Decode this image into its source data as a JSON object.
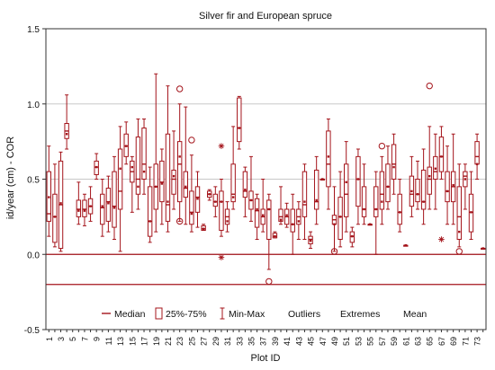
{
  "chart_data": {
    "type": "box",
    "title": "Silver fir and European spruce",
    "xlabel": "Plot ID",
    "ylabel": "id/year (cm) - COR",
    "ylim": [
      -0.5,
      1.5
    ],
    "yticks": [
      -0.5,
      0.0,
      0.5,
      1.0,
      1.5
    ],
    "ytick_labels": [
      "-0.5",
      "0.0",
      "0.5",
      "1.0",
      "1.5"
    ],
    "x_range": [
      1,
      74
    ],
    "xtick_labels": [
      "1",
      "3",
      "5",
      "7",
      "9",
      "11",
      "13",
      "15",
      "17",
      "19",
      "21",
      "23",
      "25",
      "27",
      "29",
      "31",
      "33",
      "35",
      "37",
      "39",
      "41",
      "43",
      "45",
      "47",
      "49",
      "51",
      "53",
      "55",
      "57",
      "59",
      "61",
      "63",
      "65",
      "67",
      "69",
      "71",
      "73"
    ],
    "reference_lines": [
      0.0,
      -0.2
    ],
    "grid": true,
    "legend_position": "bottom-center",
    "legend": [
      "Median",
      "25%-75%",
      "Min-Max",
      "Outliers",
      "Extremes",
      "Mean"
    ],
    "colors": {
      "series": "#a4141b",
      "grid": "#c8c8c8",
      "axis": "#333333"
    },
    "boxes": [
      {
        "plot": 1,
        "min": 0.12,
        "q1": 0.22,
        "median": 0.27,
        "q3": 0.55,
        "max": 0.72,
        "mean": 0.38
      },
      {
        "plot": 2,
        "min": 0.05,
        "q1": 0.08,
        "median": 0.25,
        "q3": 0.4,
        "max": 0.6,
        "mean": 0.25
      },
      {
        "plot": 3,
        "min": 0.02,
        "q1": 0.04,
        "median": 0.33,
        "q3": 0.62,
        "max": 0.68,
        "mean": 0.34
      },
      {
        "plot": 4,
        "min": 0.7,
        "q1": 0.77,
        "median": 0.82,
        "q3": 0.87,
        "max": 1.06,
        "mean": 0.8
      },
      {
        "plot": 6,
        "min": 0.2,
        "q1": 0.25,
        "median": 0.3,
        "q3": 0.36,
        "max": 0.48,
        "mean": 0.29
      },
      {
        "plot": 7,
        "min": 0.19,
        "q1": 0.25,
        "median": 0.3,
        "q3": 0.36,
        "max": 0.4,
        "mean": 0.29
      },
      {
        "plot": 8,
        "min": 0.22,
        "q1": 0.27,
        "median": 0.32,
        "q3": 0.37,
        "max": 0.45,
        "mean": 0.32
      },
      {
        "plot": 9,
        "min": 0.5,
        "q1": 0.53,
        "median": 0.58,
        "q3": 0.62,
        "max": 0.67,
        "mean": 0.58
      },
      {
        "plot": 10,
        "min": 0.12,
        "q1": 0.2,
        "median": 0.31,
        "q3": 0.4,
        "max": 0.5,
        "mean": 0.32
      },
      {
        "plot": 11,
        "min": 0.15,
        "q1": 0.22,
        "median": 0.35,
        "q3": 0.44,
        "max": 0.52,
        "mean": 0.34
      },
      {
        "plot": 12,
        "min": 0.1,
        "q1": 0.18,
        "median": 0.32,
        "q3": 0.55,
        "max": 0.65,
        "mean": 0.31
      },
      {
        "plot": 13,
        "min": 0.02,
        "q1": 0.3,
        "median": 0.42,
        "q3": 0.7,
        "max": 0.85,
        "mean": 0.57
      },
      {
        "plot": 14,
        "min": 0.6,
        "q1": 0.65,
        "median": 0.72,
        "q3": 0.8,
        "max": 0.88,
        "mean": 0.72
      },
      {
        "plot": 15,
        "min": 0.28,
        "q1": 0.48,
        "median": 0.55,
        "q3": 0.62,
        "max": 0.65,
        "mean": 0.58
      },
      {
        "plot": 16,
        "min": 0.3,
        "q1": 0.4,
        "median": 0.5,
        "q3": 0.78,
        "max": 0.9,
        "mean": 0.45
      },
      {
        "plot": 17,
        "min": 0.4,
        "q1": 0.5,
        "median": 0.6,
        "q3": 0.84,
        "max": 0.9,
        "mean": 0.55
      },
      {
        "plot": 18,
        "min": 0.08,
        "q1": 0.12,
        "median": 0.22,
        "q3": 0.45,
        "max": 0.58,
        "mean": 0.22
      },
      {
        "plot": 19,
        "min": 0.15,
        "q1": 0.3,
        "median": 0.45,
        "q3": 0.6,
        "max": 1.2,
        "mean": 0.45
      },
      {
        "plot": 20,
        "min": 0.2,
        "q1": 0.35,
        "median": 0.48,
        "q3": 0.62,
        "max": 0.7,
        "mean": 0.47
      },
      {
        "plot": 21,
        "min": 0.15,
        "q1": 0.22,
        "median": 0.33,
        "q3": 0.8,
        "max": 1.12,
        "mean": 0.35
      },
      {
        "plot": 22,
        "min": 0.3,
        "q1": 0.4,
        "median": 0.5,
        "q3": 0.56,
        "max": 0.82,
        "mean": 0.52
      },
      {
        "plot": 23,
        "min": 0.22,
        "q1": 0.35,
        "median": 0.6,
        "q3": 0.75,
        "max": 1.0,
        "mean": 0.65,
        "outliers": [
          1.1,
          0.22
        ]
      },
      {
        "plot": 24,
        "min": 0.2,
        "q1": 0.38,
        "median": 0.44,
        "q3": 0.55,
        "max": 0.98,
        "mean": 0.45
      },
      {
        "plot": 25,
        "min": 0.15,
        "q1": 0.2,
        "median": 0.28,
        "q3": 0.42,
        "max": 0.66,
        "mean": 0.27,
        "outliers": [
          0.76
        ]
      },
      {
        "plot": 26,
        "min": 0.18,
        "q1": 0.28,
        "median": 0.38,
        "q3": 0.45,
        "max": 0.55,
        "mean": 0.37
      },
      {
        "plot": 27,
        "min": 0.16,
        "q1": 0.16,
        "median": 0.17,
        "q3": 0.19,
        "max": 0.2,
        "mean": 0.17
      },
      {
        "plot": 28,
        "min": 0.36,
        "q1": 0.38,
        "median": 0.4,
        "q3": 0.42,
        "max": 0.43,
        "mean": 0.4
      },
      {
        "plot": 29,
        "min": 0.25,
        "q1": 0.32,
        "median": 0.35,
        "q3": 0.4,
        "max": 0.45,
        "mean": 0.35
      },
      {
        "plot": 30,
        "min": 0.12,
        "q1": 0.16,
        "median": 0.35,
        "q3": 0.42,
        "max": 0.5,
        "mean": 0.35,
        "extremes": [
          0.72,
          -0.02
        ]
      },
      {
        "plot": 31,
        "min": 0.15,
        "q1": 0.2,
        "median": 0.25,
        "q3": 0.3,
        "max": 0.35,
        "mean": 0.22
      },
      {
        "plot": 32,
        "min": 0.3,
        "q1": 0.35,
        "median": 0.4,
        "q3": 0.6,
        "max": 0.85,
        "mean": 0.38
      },
      {
        "plot": 33,
        "min": 0.7,
        "q1": 0.75,
        "median": 0.84,
        "q3": 1.04,
        "max": 1.05,
        "mean": 0.84
      },
      {
        "plot": 34,
        "min": 0.25,
        "q1": 0.38,
        "median": 0.42,
        "q3": 0.55,
        "max": 0.58,
        "mean": 0.43
      },
      {
        "plot": 35,
        "min": 0.22,
        "q1": 0.3,
        "median": 0.36,
        "q3": 0.42,
        "max": 0.65,
        "mean": 0.36
      },
      {
        "plot": 36,
        "min": 0.1,
        "q1": 0.18,
        "median": 0.29,
        "q3": 0.37,
        "max": 0.4,
        "mean": 0.3
      },
      {
        "plot": 37,
        "min": 0.15,
        "q1": 0.2,
        "median": 0.25,
        "q3": 0.3,
        "max": 0.5,
        "mean": 0.26
      },
      {
        "plot": 38,
        "min": -0.1,
        "q1": 0.1,
        "median": 0.3,
        "q3": 0.36,
        "max": 0.4,
        "mean": 0.3,
        "outliers": [
          -0.18
        ]
      },
      {
        "plot": 39,
        "min": 0.11,
        "q1": 0.11,
        "median": 0.12,
        "q3": 0.14,
        "max": 0.15,
        "mean": 0.12
      },
      {
        "plot": 40,
        "min": 0.2,
        "q1": 0.22,
        "median": 0.25,
        "q3": 0.3,
        "max": 0.45,
        "mean": 0.23
      },
      {
        "plot": 41,
        "min": 0.18,
        "q1": 0.2,
        "median": 0.25,
        "q3": 0.3,
        "max": 0.34,
        "mean": 0.26
      },
      {
        "plot": 42,
        "min": 0.0,
        "q1": 0.15,
        "median": 0.2,
        "q3": 0.3,
        "max": 0.4,
        "mean": 0.2
      },
      {
        "plot": 43,
        "min": 0.1,
        "q1": 0.2,
        "median": 0.25,
        "q3": 0.3,
        "max": 0.35,
        "mean": 0.22
      },
      {
        "plot": 44,
        "min": 0.1,
        "q1": 0.25,
        "median": 0.33,
        "q3": 0.55,
        "max": 0.6,
        "mean": 0.35
      },
      {
        "plot": 45,
        "min": 0.04,
        "q1": 0.07,
        "median": 0.1,
        "q3": 0.12,
        "max": 0.15,
        "mean": 0.09
      },
      {
        "plot": 46,
        "min": 0.2,
        "q1": 0.3,
        "median": 0.35,
        "q3": 0.56,
        "max": 0.65,
        "mean": 0.36
      },
      {
        "plot": 47,
        "min": 0.5,
        "q1": 0.5,
        "median": 0.5,
        "q3": 0.5,
        "max": 0.5,
        "mean": 0.5
      },
      {
        "plot": 48,
        "min": 0.3,
        "q1": 0.45,
        "median": 0.6,
        "q3": 0.82,
        "max": 0.9,
        "mean": 0.65
      },
      {
        "plot": 49,
        "min": 0.02,
        "q1": 0.2,
        "median": 0.23,
        "q3": 0.26,
        "max": 0.45,
        "mean": 0.2,
        "outliers": [
          0.02
        ]
      },
      {
        "plot": 50,
        "min": 0.05,
        "q1": 0.1,
        "median": 0.25,
        "q3": 0.38,
        "max": 0.55,
        "mean": 0.25
      },
      {
        "plot": 51,
        "min": 0.15,
        "q1": 0.25,
        "median": 0.4,
        "q3": 0.6,
        "max": 0.75,
        "mean": 0.48
      },
      {
        "plot": 52,
        "min": 0.05,
        "q1": 0.08,
        "median": 0.12,
        "q3": 0.15,
        "max": 0.18,
        "mean": 0.12
      },
      {
        "plot": 53,
        "min": 0.2,
        "q1": 0.32,
        "median": 0.5,
        "q3": 0.65,
        "max": 0.7,
        "mean": 0.5
      },
      {
        "plot": 54,
        "min": 0.2,
        "q1": 0.25,
        "median": 0.3,
        "q3": 0.45,
        "max": 0.6,
        "mean": 0.3
      },
      {
        "plot": 55,
        "min": 0.2,
        "q1": 0.2,
        "median": 0.2,
        "q3": 0.2,
        "max": 0.2,
        "mean": 0.2
      },
      {
        "plot": 56,
        "min": 0.0,
        "q1": 0.25,
        "median": 0.3,
        "q3": 0.45,
        "max": 0.55,
        "mean": 0.3
      },
      {
        "plot": 57,
        "min": 0.2,
        "q1": 0.3,
        "median": 0.4,
        "q3": 0.55,
        "max": 0.65,
        "mean": 0.35,
        "outliers": [
          0.72
        ]
      },
      {
        "plot": 58,
        "min": 0.3,
        "q1": 0.35,
        "median": 0.45,
        "q3": 0.6,
        "max": 0.72,
        "mean": 0.45
      },
      {
        "plot": 59,
        "min": 0.4,
        "q1": 0.5,
        "median": 0.6,
        "q3": 0.73,
        "max": 0.8,
        "mean": 0.58
      },
      {
        "plot": 60,
        "min": 0.15,
        "q1": 0.2,
        "median": 0.28,
        "q3": 0.4,
        "max": 0.5,
        "mean": 0.28
      },
      {
        "plot": 61,
        "min": 0.06,
        "q1": 0.06,
        "median": 0.06,
        "q3": 0.06,
        "max": 0.06,
        "mean": 0.06
      },
      {
        "plot": 62,
        "min": 0.25,
        "q1": 0.32,
        "median": 0.4,
        "q3": 0.52,
        "max": 0.65,
        "mean": 0.42
      },
      {
        "plot": 63,
        "min": 0.3,
        "q1": 0.35,
        "median": 0.4,
        "q3": 0.5,
        "max": 0.62,
        "mean": 0.4
      },
      {
        "plot": 64,
        "min": 0.2,
        "q1": 0.3,
        "median": 0.35,
        "q3": 0.56,
        "max": 0.7,
        "mean": 0.35
      },
      {
        "plot": 65,
        "min": 0.3,
        "q1": 0.4,
        "median": 0.5,
        "q3": 0.58,
        "max": 0.85,
        "mean": 0.52,
        "outliers": [
          1.12
        ]
      },
      {
        "plot": 66,
        "min": 0.3,
        "q1": 0.5,
        "median": 0.55,
        "q3": 0.65,
        "max": 0.8,
        "mean": 0.57
      },
      {
        "plot": 67,
        "min": 0.5,
        "q1": 0.55,
        "median": 0.65,
        "q3": 0.78,
        "max": 0.85,
        "mean": 0.65,
        "extremes": [
          0.1
        ]
      },
      {
        "plot": 68,
        "min": 0.2,
        "q1": 0.35,
        "median": 0.42,
        "q3": 0.55,
        "max": 0.72,
        "mean": 0.42
      },
      {
        "plot": 69,
        "min": 0.2,
        "q1": 0.35,
        "median": 0.45,
        "q3": 0.55,
        "max": 0.8,
        "mean": 0.46
      },
      {
        "plot": 70,
        "min": 0.05,
        "q1": 0.1,
        "median": 0.25,
        "q3": 0.45,
        "max": 0.6,
        "mean": 0.15,
        "outliers": [
          0.02
        ]
      },
      {
        "plot": 71,
        "min": 0.3,
        "q1": 0.45,
        "median": 0.52,
        "q3": 0.55,
        "max": 0.6,
        "mean": 0.5
      },
      {
        "plot": 72,
        "min": 0.1,
        "q1": 0.15,
        "median": 0.28,
        "q3": 0.4,
        "max": 0.55,
        "mean": 0.28
      },
      {
        "plot": 73,
        "min": 0.5,
        "q1": 0.6,
        "median": 0.65,
        "q3": 0.75,
        "max": 0.8,
        "mean": 0.6
      },
      {
        "plot": 74,
        "min": 0.04,
        "q1": 0.04,
        "median": 0.04,
        "q3": 0.04,
        "max": 0.04,
        "mean": 0.04
      }
    ]
  }
}
